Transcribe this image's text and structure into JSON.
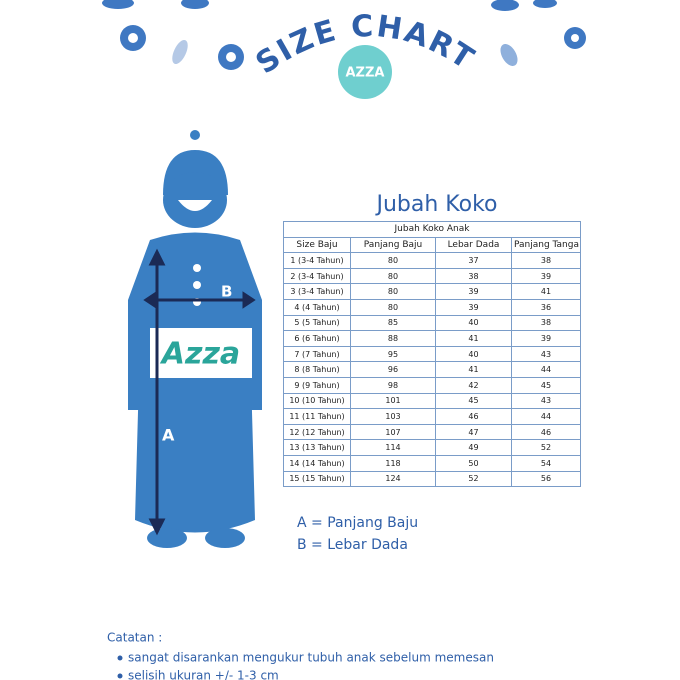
{
  "header": {
    "title": "SIZE CHART",
    "logo": "AZZA"
  },
  "figure": {
    "logo": "Azza",
    "label_a": "A",
    "label_b": "B"
  },
  "section_title": "Jubah Koko",
  "table": {
    "caption": "Jubah Koko Anak",
    "columns": [
      "Size Baju",
      "Panjang Baju",
      "Lebar Dada",
      "Panjang Tanga"
    ],
    "rows": [
      [
        "1 (3-4 Tahun)",
        80,
        37,
        38
      ],
      [
        "2 (3-4 Tahun)",
        80,
        38,
        39
      ],
      [
        "3 (3-4 Tahun)",
        80,
        39,
        41
      ],
      [
        "4 (4 Tahun)",
        80,
        39,
        36
      ],
      [
        "5 (5 Tahun)",
        85,
        40,
        38
      ],
      [
        "6 (6 Tahun)",
        88,
        41,
        39
      ],
      [
        "7 (7 Tahun)",
        95,
        40,
        43
      ],
      [
        "8 (8 Tahun)",
        96,
        41,
        44
      ],
      [
        "9 (9 Tahun)",
        98,
        42,
        45
      ],
      [
        "10 (10 Tahun)",
        101,
        45,
        43
      ],
      [
        "11 (11 Tahun)",
        103,
        46,
        44
      ],
      [
        "12 (12 Tahun)",
        107,
        47,
        46
      ],
      [
        "13 (13 Tahun)",
        114,
        49,
        52
      ],
      [
        "14 (14 Tahun)",
        118,
        50,
        54
      ],
      [
        "15 (15 Tahun)",
        124,
        52,
        56
      ]
    ]
  },
  "legend": [
    "A = Panjang Baju",
    "B = Lebar Dada"
  ],
  "notes": {
    "title": "Catatan :",
    "items": [
      "sangat disarankan mengukur tubuh anak sebelum memesan",
      "selisih ukuran +/- 1-3 cm"
    ]
  }
}
